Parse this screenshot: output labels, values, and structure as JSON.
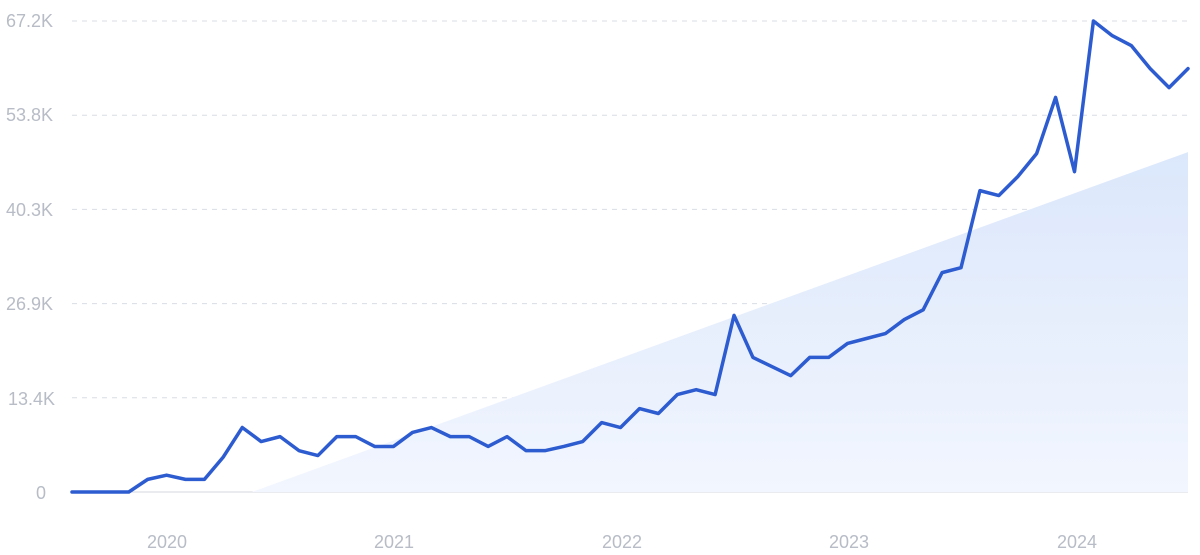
{
  "colors": {
    "line": "#2d5bd0",
    "trend_fill_top": "#dbe7fb",
    "trend_fill_bottom": "#f2f6fe",
    "tick_text": "#b7bcc6",
    "grid": "#d9dde4"
  },
  "chart_data": {
    "type": "line",
    "title": "",
    "xlabel": "",
    "ylabel": "",
    "grid": true,
    "legend": "none",
    "x_ticks": [
      "2020",
      "2021",
      "2022",
      "2023",
      "2024"
    ],
    "y_ticks": [
      "0",
      "13.4K",
      "26.9K",
      "40.3K",
      "53.8K",
      "67.2K"
    ],
    "ylim": [
      0,
      67200
    ],
    "series": [
      {
        "values": [
          0,
          0,
          0,
          0,
          1800,
          2400,
          1800,
          1800,
          5000,
          9200,
          7200,
          7900,
          5900,
          5200,
          7900,
          7900,
          6500,
          6500,
          8500,
          9200,
          7900,
          7900,
          6500,
          7900,
          5900,
          5900,
          6500,
          7200,
          9900,
          9200,
          11900,
          11200,
          13900,
          14600,
          13900,
          25200,
          19200,
          17900,
          16600,
          19200,
          19200,
          21200,
          21900,
          22600,
          24600,
          26000,
          31300,
          32000,
          43000,
          42300,
          45000,
          48300,
          56300,
          45700,
          67200,
          65100,
          63700,
          60400,
          57700,
          60400
        ]
      },
      {
        "values": [
          0,
          48500
        ]
      }
    ]
  },
  "x_tick_labels": {
    "t2020": "2020",
    "t2021": "2021",
    "t2022": "2022",
    "t2023": "2023",
    "t2024": "2024"
  },
  "y_tick_labels": {
    "t0": "0",
    "t1": "13.4K",
    "t2": "26.9K",
    "t3": "40.3K",
    "t4": "53.8K",
    "t5": "67.2K"
  }
}
